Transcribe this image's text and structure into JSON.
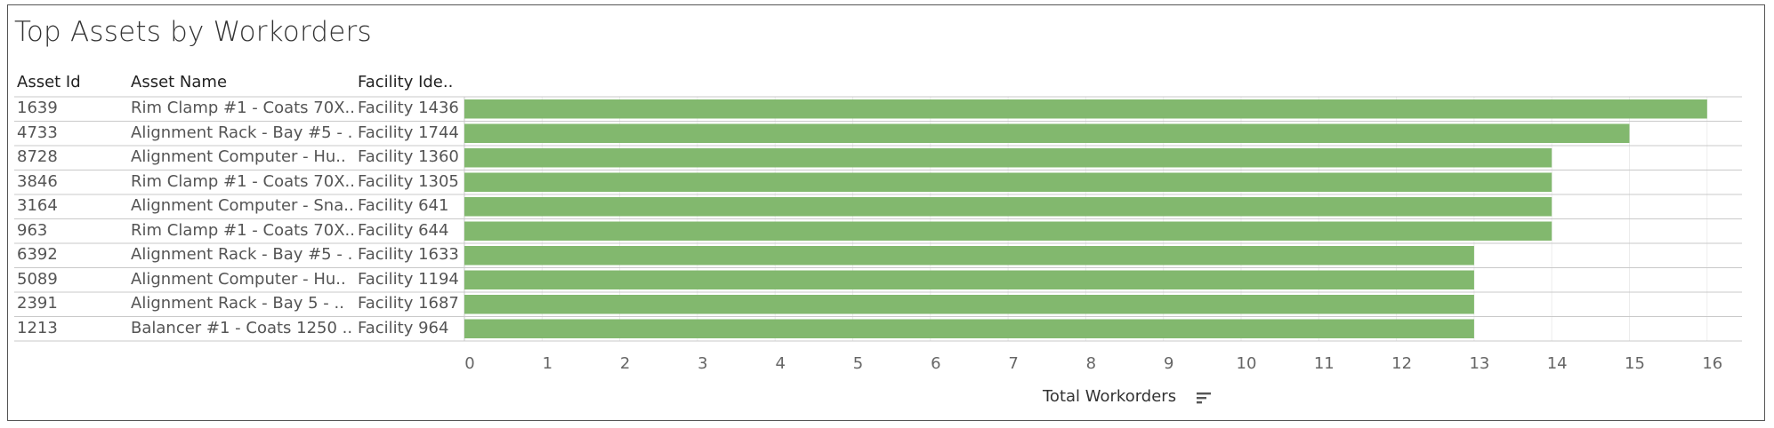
{
  "title": "Top Assets by Workorders",
  "columns": {
    "asset_id": "Asset Id",
    "asset_name": "Asset Name",
    "facility": "Facility Ide.."
  },
  "rows": [
    {
      "asset_id": "1639",
      "asset_name": "Rim Clamp #1 - Coats 70X..",
      "facility": "Facility 1436"
    },
    {
      "asset_id": "4733",
      "asset_name": "Alignment Rack - Bay #5 - ..",
      "facility": "Facility 1744"
    },
    {
      "asset_id": "8728",
      "asset_name": "Alignment Computer - Hu..",
      "facility": "Facility 1360"
    },
    {
      "asset_id": "3846",
      "asset_name": "Rim Clamp #1 - Coats 70X..",
      "facility": "Facility 1305"
    },
    {
      "asset_id": "3164",
      "asset_name": "Alignment Computer - Sna..",
      "facility": "Facility 641"
    },
    {
      "asset_id": "963",
      "asset_name": "Rim Clamp #1 - Coats 70X..",
      "facility": "Facility 644"
    },
    {
      "asset_id": "6392",
      "asset_name": "Alignment Rack - Bay #5 - ..",
      "facility": "Facility 1633"
    },
    {
      "asset_id": "5089",
      "asset_name": "Alignment Computer - Hu..",
      "facility": "Facility 1194"
    },
    {
      "asset_id": "2391",
      "asset_name": "Alignment Rack - Bay 5 - ..",
      "facility": "Facility 1687"
    },
    {
      "asset_id": "1213",
      "asset_name": "Balancer #1 - Coats 1250 ..",
      "facility": "Facility 964"
    }
  ],
  "chart_data": {
    "type": "bar",
    "orientation": "horizontal",
    "categories": [
      "1639",
      "4733",
      "8728",
      "3846",
      "3164",
      "963",
      "6392",
      "5089",
      "2391",
      "1213"
    ],
    "values": [
      16,
      15,
      14,
      14,
      14,
      14,
      13,
      13,
      13,
      13
    ],
    "xlabel": "Total Workorders",
    "xlim": [
      0,
      16.5
    ],
    "ticks": [
      "0",
      "1",
      "2",
      "3",
      "4",
      "5",
      "6",
      "7",
      "8",
      "9",
      "10",
      "11",
      "12",
      "13",
      "14",
      "15",
      "16"
    ],
    "bar_color": "#82b86e",
    "grid": true,
    "sorted": "descending"
  },
  "icons": {
    "sort": "sort-descending-icon"
  }
}
